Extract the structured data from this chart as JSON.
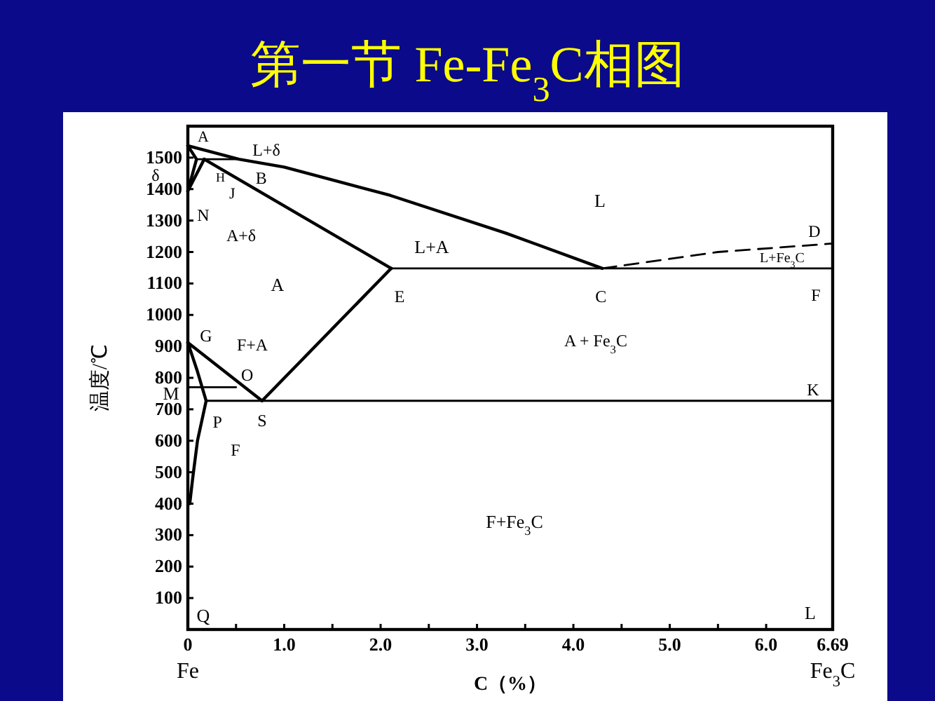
{
  "chart_data": {
    "type": "line",
    "title": "第一节 Fe-Fe$_{3}$C相图",
    "xlabel": "C（%）",
    "ylabel": "温度/℃",
    "xlim": [
      0,
      6.69
    ],
    "ylim": [
      0,
      1600
    ],
    "xticks": [
      0,
      {
        "value": 0.5,
        "label": null
      },
      {
        "value": 1,
        "label": "1.0"
      },
      {
        "value": 1.5,
        "label": null
      },
      {
        "value": 2,
        "label": "2.0"
      },
      {
        "value": 2.5,
        "label": null
      },
      {
        "value": 3,
        "label": "3.0"
      },
      {
        "value": 3.5,
        "label": null
      },
      {
        "value": 4,
        "label": "4.0"
      },
      {
        "value": 4.5,
        "label": null
      },
      {
        "value": 5,
        "label": "5.0"
      },
      {
        "value": 5.5,
        "label": null
      },
      {
        "value": 6,
        "label": "6.0"
      },
      {
        "value": 6.69,
        "label": "6.69"
      }
    ],
    "yticks": [
      100,
      200,
      300,
      400,
      500,
      600,
      700,
      800,
      900,
      1000,
      1100,
      1200,
      1300,
      1400,
      1500
    ],
    "grid": false,
    "marker": "none",
    "series": [
      {
        "color": "#000000",
        "x": [
          0,
          0.53,
          1.0,
          2.1,
          3.3,
          4.3
        ],
        "values": [
          1538,
          1495,
          1470,
          1380,
          1260,
          1148
        ]
      },
      {
        "color": "#000000",
        "x": [
          4.3,
          5.5,
          6.69
        ],
        "values": [
          1148,
          1200,
          1227
        ],
        "line_style": "dashed"
      },
      {
        "color": "#000000",
        "x": [
          0.09,
          0.53
        ],
        "values": [
          1495,
          1495
        ]
      },
      {
        "color": "#000000",
        "x": [
          0,
          0.09,
          0
        ],
        "values": [
          1538,
          1495,
          1394
        ]
      },
      {
        "color": "#000000",
        "x": [
          0.17,
          0
        ],
        "values": [
          1495,
          1394
        ]
      },
      {
        "color": "#000000",
        "x": [
          0.17,
          2.11
        ],
        "values": [
          1495,
          1148
        ]
      },
      {
        "color": "#000000",
        "x": [
          2.11,
          6.69
        ],
        "values": [
          1148,
          1148
        ]
      },
      {
        "color": "#000000",
        "x": [
          2.11,
          0.77
        ],
        "values": [
          1148,
          727
        ]
      },
      {
        "color": "#000000",
        "x": [
          0,
          0.77
        ],
        "values": [
          912,
          727
        ]
      },
      {
        "color": "#000000",
        "x": [
          0,
          0.1,
          0.19
        ],
        "values": [
          912,
          820,
          727
        ]
      },
      {
        "color": "#000000",
        "x": [
          0.19,
          6.69
        ],
        "values": [
          727,
          727
        ]
      },
      {
        "color": "#000000",
        "x": [
          0.19,
          0.1,
          0.05,
          0.02
        ],
        "values": [
          727,
          600,
          480,
          400
        ]
      },
      {
        "color": "#000000",
        "x": [
          0,
          0.5
        ],
        "values": [
          770,
          770
        ]
      }
    ],
    "annotations": [
      {
        "text": "A",
        "x": 0,
        "y": 1538
      },
      "L+δ",
      {
        "text": "B",
        "x": 0.53,
        "y": 1495
      },
      {
        "text": "H",
        "x": 0.09,
        "y": 1495
      },
      "δ",
      {
        "text": "J",
        "x": 0.17,
        "y": 1495
      },
      {
        "text": "N",
        "x": 0,
        "y": 1394
      },
      "A+δ",
      "L",
      "L+A",
      "A",
      {
        "text": "E",
        "x": 2.11,
        "y": 1148
      },
      {
        "text": "C",
        "x": 4.3,
        "y": 1148
      },
      {
        "text": "D",
        "x": 6.69,
        "y": 1227
      },
      {
        "text": "F",
        "x": 6.69,
        "y": 1148
      },
      "L+Fe$_{3}$C",
      "A + Fe$_{3}$C",
      {
        "text": "G",
        "x": 0,
        "y": 912
      },
      "F+A",
      {
        "text": "O",
        "x": 0.5,
        "y": 770
      },
      {
        "text": "M",
        "x": 0,
        "y": 770
      },
      {
        "text": "K",
        "x": 6.69,
        "y": 727
      },
      {
        "text": "P",
        "x": 0.19,
        "y": 727
      },
      {
        "text": "S",
        "x": 0.77,
        "y": 727
      },
      "F",
      "F+Fe$_{3}$C",
      "Q",
      "L",
      "Fe",
      "Fe$_{3}$C"
    ]
  }
}
